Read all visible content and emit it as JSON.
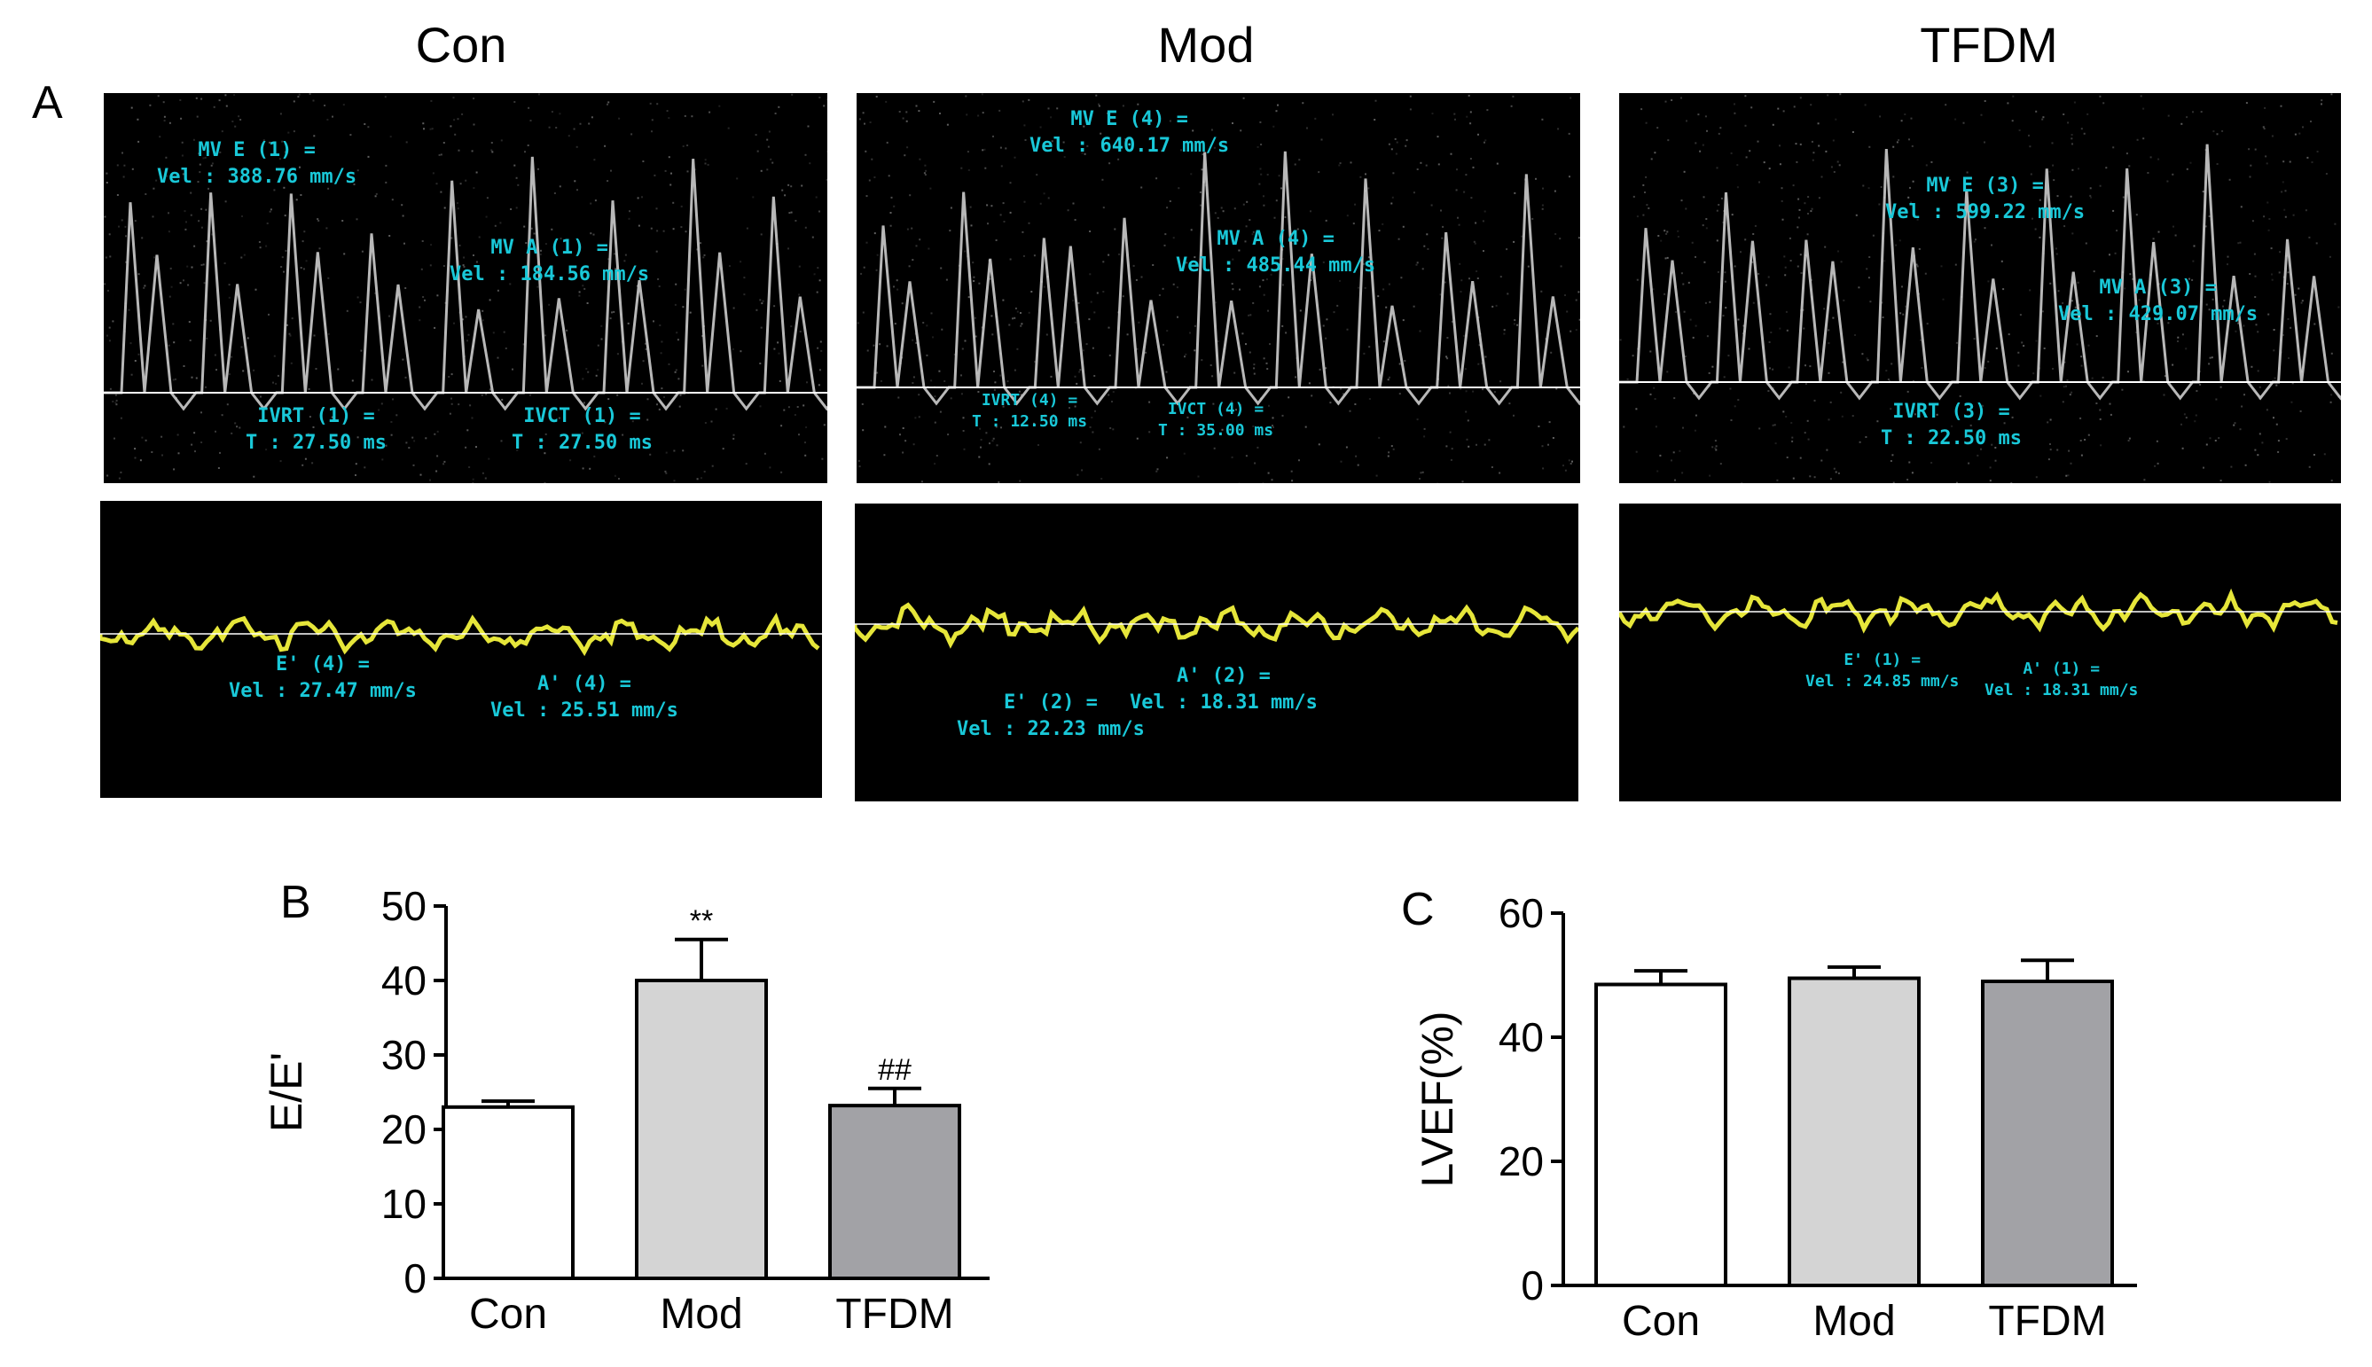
{
  "panel_labels": {
    "a": "A",
    "b": "B",
    "c": "C"
  },
  "columns": [
    "Con",
    "Mod",
    "TFDM"
  ],
  "pw_measurements": [
    [
      {
        "label": "MV E (1) =",
        "value": "Vel : 388.76 mm/s"
      },
      {
        "label": "MV A (1) =",
        "value": "Vel : 184.56 mm/s"
      },
      {
        "label": "IVRT (1) =",
        "value": "T : 27.50 ms"
      },
      {
        "label": "IVCT (1) =",
        "value": "T : 27.50 ms"
      }
    ],
    [
      {
        "label": "MV E (4) =",
        "value": "Vel : 640.17 mm/s"
      },
      {
        "label": "MV A (4) =",
        "value": "Vel : 485.44 mm/s"
      },
      {
        "label": "IVRT (4) =",
        "value": "T : 12.50 ms"
      },
      {
        "label": "IVCT (4) =",
        "value": "T : 35.00 ms"
      }
    ],
    [
      {
        "label": "MV E (3) =",
        "value": "Vel : 599.22 mm/s"
      },
      {
        "label": "MV A (3) =",
        "value": "Vel : 429.07 mm/s"
      },
      {
        "label": "IVRT (3) =",
        "value": "T : 22.50 ms"
      }
    ]
  ],
  "tdi_measurements": [
    [
      {
        "label": "E' (4) =",
        "value": "Vel : 27.47 mm/s"
      },
      {
        "label": "A' (4) =",
        "value": "Vel : 25.51 mm/s"
      }
    ],
    [
      {
        "label": "E' (2) =",
        "value": "Vel : 22.23 mm/s"
      },
      {
        "label": "A' (2) =",
        "value": "Vel : 18.31 mm/s"
      }
    ],
    [
      {
        "label": "E' (1) =",
        "value": "Vel : 24.85 mm/s"
      },
      {
        "label": "A' (1) =",
        "value": "Vel : 18.31 mm/s"
      }
    ]
  ],
  "colors": {
    "measurement": "#19c8d8",
    "tdi_trace": "#ffff40",
    "con_bar": "#ffffff",
    "mod_bar": "#d4d4d4",
    "tfdm_bar": "#a2a2a6"
  },
  "chart_data": [
    {
      "type": "bar",
      "title": "",
      "categories": [
        "Con",
        "Mod",
        "TFDM"
      ],
      "values": [
        23,
        40,
        23.2
      ],
      "errors": [
        0.8,
        5.5,
        2.3
      ],
      "annotations": [
        "",
        "**",
        "##"
      ],
      "xlabel": "",
      "ylabel": "E/E'",
      "ylim": [
        0,
        50
      ],
      "yticks": [
        0,
        10,
        20,
        30,
        40,
        50
      ]
    },
    {
      "type": "bar",
      "title": "",
      "categories": [
        "Con",
        "Mod",
        "TFDM"
      ],
      "values": [
        48.5,
        49.5,
        49
      ],
      "errors": [
        2.2,
        1.8,
        3.4
      ],
      "annotations": [
        "",
        "",
        ""
      ],
      "xlabel": "",
      "ylabel": "LVEF(%)",
      "ylim": [
        0,
        60
      ],
      "yticks": [
        0,
        20,
        40,
        60
      ]
    }
  ]
}
